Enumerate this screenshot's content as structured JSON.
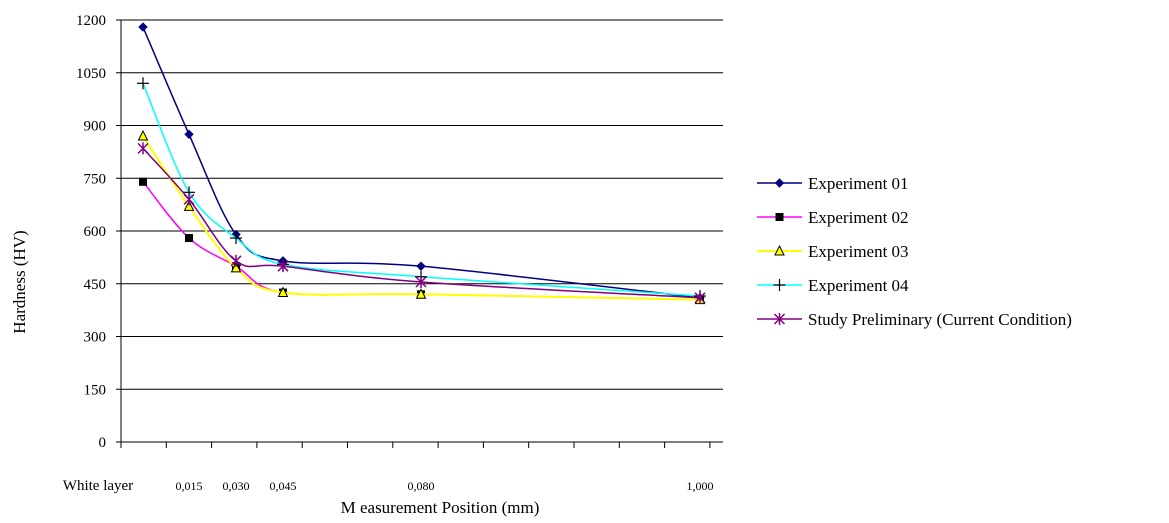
{
  "chart_data": {
    "type": "line",
    "title": "",
    "xlabel": "M easurement Position (mm)",
    "ylabel": "Hardness (HV)",
    "ylim": [
      0,
      1200
    ],
    "yticks": [
      0,
      150,
      300,
      450,
      600,
      750,
      900,
      1050,
      1200
    ],
    "y_tick_labels": [
      "0",
      "150",
      "300",
      "450",
      "600",
      "750",
      "900",
      "1050",
      "1200"
    ],
    "x_tick_labels": [
      "White layer",
      "0,015",
      "0,030",
      "0,045",
      "0,080",
      "1,000"
    ],
    "grid": "horizontal",
    "legend_position": "right",
    "series": [
      {
        "name": "Experiment 01",
        "color": "#000080",
        "marker": "diamond",
        "points": [
          {
            "x": "White layer",
            "y": 1180
          },
          {
            "x": "0,015",
            "y": 875
          },
          {
            "x": "0,030",
            "y": 590
          },
          {
            "x": "0,045",
            "y": 515
          },
          {
            "x": "0,080",
            "y": 500
          },
          {
            "x": "1,000",
            "y": 410
          }
        ]
      },
      {
        "name": "Experiment 02",
        "color": "#FF00FF",
        "marker": "square",
        "points": [
          {
            "x": "White layer",
            "y": 740
          },
          {
            "x": "0,015",
            "y": 580
          },
          {
            "x": "0,030",
            "y": 500
          },
          {
            "x": "0,045",
            "y": 425
          },
          {
            "x": "0,080",
            "y": 420
          },
          {
            "x": "1,000",
            "y": 405
          }
        ]
      },
      {
        "name": "Experiment 03",
        "color": "#FFFF00",
        "marker": "triangle",
        "points": [
          {
            "x": "White layer",
            "y": 870
          },
          {
            "x": "0,015",
            "y": 670
          },
          {
            "x": "0,030",
            "y": 495
          },
          {
            "x": "0,045",
            "y": 425
          },
          {
            "x": "0,080",
            "y": 420
          },
          {
            "x": "1,000",
            "y": 405
          }
        ]
      },
      {
        "name": "Experiment 04",
        "color": "#00FFFF",
        "marker": "plus",
        "points": [
          {
            "x": "White layer",
            "y": 1020
          },
          {
            "x": "0,015",
            "y": 710
          },
          {
            "x": "0,030",
            "y": 580
          },
          {
            "x": "0,045",
            "y": 505
          },
          {
            "x": "0,080",
            "y": 470
          },
          {
            "x": "1,000",
            "y": 415
          }
        ]
      },
      {
        "name": "Study Preliminary (Current Condition)",
        "color": "#800080",
        "marker": "asterisk",
        "points": [
          {
            "x": "White layer",
            "y": 835
          },
          {
            "x": "0,015",
            "y": 690
          },
          {
            "x": "0,030",
            "y": 515
          },
          {
            "x": "0,045",
            "y": 500
          },
          {
            "x": "0,080",
            "y": 455
          },
          {
            "x": "1,000",
            "y": 410
          }
        ]
      }
    ]
  }
}
